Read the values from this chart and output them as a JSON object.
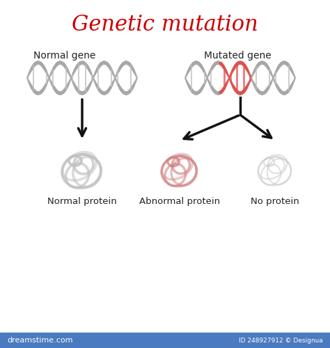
{
  "title": "Genetic mutation",
  "title_color": "#cc0000",
  "title_fontsize": 22,
  "label_normal_gene": "Normal gene",
  "label_mutated_gene": "Mutated gene",
  "label_normal_protein": "Normal protein",
  "label_abnormal_protein": "Abnormal protein",
  "label_no_protein": "No protein",
  "bg_color": "#ffffff",
  "dna_color_normal": "#a8a8a8",
  "dna_color_mutated": "#e05050",
  "arrow_color": "#111111",
  "protein_normal_color": "#c0c0c0",
  "protein_abnormal_color": "#d08080",
  "protein_none_color": "#c8c8c8",
  "bar_color": "#4a7abf",
  "watermark_left": "dreamstime.com",
  "watermark_right": "ID 248927912 © Designua",
  "label_fontsize": 10
}
